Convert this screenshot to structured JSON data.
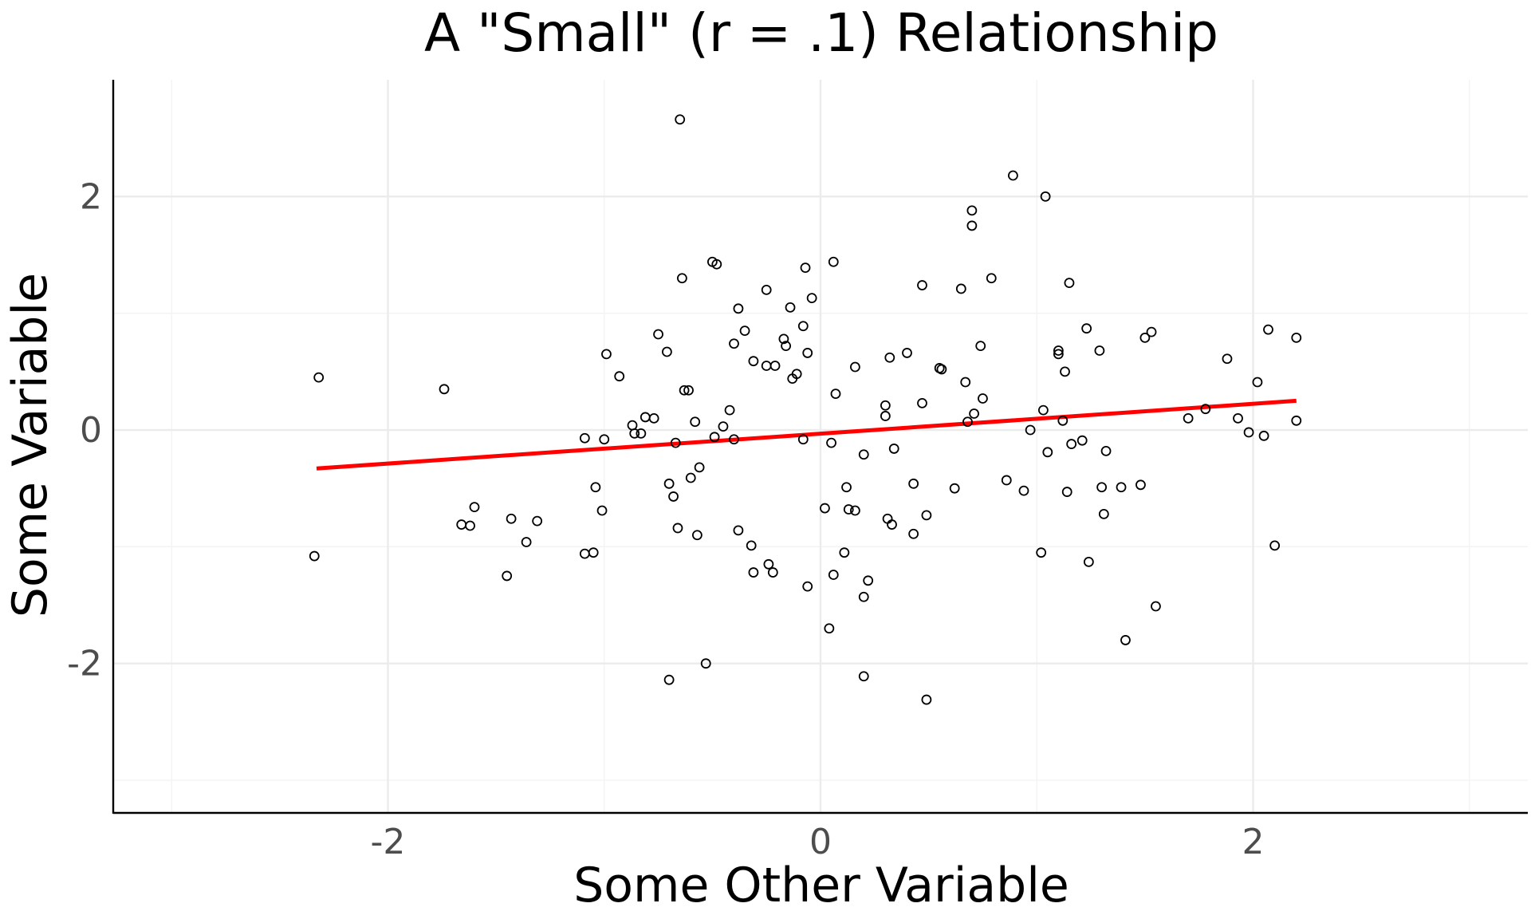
{
  "chart_data": {
    "type": "scatter",
    "title": "A \"Small\" (r = .1) Relationship",
    "xlabel": "Some Other Variable",
    "ylabel": "Some Variable",
    "xlim": [
      -3.27,
      3.27
    ],
    "ylim": [
      -3.28,
      3.0
    ],
    "x_ticks": [
      -2,
      0,
      2
    ],
    "x_tick_labels": [
      "-2",
      "0",
      "2"
    ],
    "y_ticks": [
      -2,
      0,
      2
    ],
    "y_tick_labels": [
      "-2",
      "0",
      "2"
    ],
    "x_minor_ticks": [
      -3,
      -1,
      1,
      3
    ],
    "y_minor_ticks": [
      -3,
      -1,
      1
    ],
    "grid": true,
    "legend": "none",
    "point_color": "#000000",
    "fit_color": "#ff0000",
    "fit_line": {
      "x": [
        -2.33,
        2.2
      ],
      "y": [
        -0.33,
        0.25
      ]
    },
    "points": [
      [
        -2.32,
        0.45
      ],
      [
        -2.34,
        -1.08
      ],
      [
        -1.74,
        0.35
      ],
      [
        -1.66,
        -0.81
      ],
      [
        -1.62,
        -0.82
      ],
      [
        -1.6,
        -0.66
      ],
      [
        -1.45,
        -1.25
      ],
      [
        -1.43,
        -0.76
      ],
      [
        -1.36,
        -0.96
      ],
      [
        -1.31,
        -0.78
      ],
      [
        -1.09,
        -0.07
      ],
      [
        -1.09,
        -1.06
      ],
      [
        -1.05,
        -1.05
      ],
      [
        -1.04,
        -0.49
      ],
      [
        -1.01,
        -0.69
      ],
      [
        -1.0,
        -0.08
      ],
      [
        -0.99,
        0.65
      ],
      [
        -0.93,
        0.46
      ],
      [
        -0.87,
        0.04
      ],
      [
        -0.86,
        -0.03
      ],
      [
        -0.83,
        -0.03
      ],
      [
        -0.81,
        0.11
      ],
      [
        -0.77,
        0.1
      ],
      [
        -0.75,
        0.82
      ],
      [
        -0.71,
        0.67
      ],
      [
        -0.7,
        -0.46
      ],
      [
        -0.7,
        -2.14
      ],
      [
        -0.68,
        -0.57
      ],
      [
        -0.67,
        -0.11
      ],
      [
        -0.66,
        -0.84
      ],
      [
        -0.65,
        2.66
      ],
      [
        -0.64,
        1.3
      ],
      [
        -0.63,
        0.34
      ],
      [
        -0.61,
        0.34
      ],
      [
        -0.6,
        -0.41
      ],
      [
        -0.58,
        0.07
      ],
      [
        -0.57,
        -0.9
      ],
      [
        -0.56,
        -0.32
      ],
      [
        -0.53,
        -2.0
      ],
      [
        -0.5,
        1.44
      ],
      [
        -0.49,
        -0.06
      ],
      [
        -0.48,
        1.42
      ],
      [
        -0.45,
        0.03
      ],
      [
        -0.42,
        0.17
      ],
      [
        -0.4,
        0.74
      ],
      [
        -0.4,
        -0.08
      ],
      [
        -0.38,
        1.04
      ],
      [
        -0.38,
        -0.86
      ],
      [
        -0.35,
        0.85
      ],
      [
        -0.32,
        -0.99
      ],
      [
        -0.31,
        0.59
      ],
      [
        -0.31,
        -1.22
      ],
      [
        -0.25,
        1.2
      ],
      [
        -0.25,
        0.55
      ],
      [
        -0.24,
        -1.15
      ],
      [
        -0.22,
        -1.22
      ],
      [
        -0.21,
        0.55
      ],
      [
        -0.17,
        0.78
      ],
      [
        -0.16,
        0.72
      ],
      [
        -0.14,
        1.05
      ],
      [
        -0.13,
        0.44
      ],
      [
        -0.11,
        0.48
      ],
      [
        -0.08,
        0.89
      ],
      [
        -0.08,
        -0.08
      ],
      [
        -0.07,
        1.39
      ],
      [
        -0.06,
        -1.34
      ],
      [
        -0.06,
        0.66
      ],
      [
        -0.04,
        1.13
      ],
      [
        0.02,
        -0.67
      ],
      [
        0.04,
        -1.7
      ],
      [
        0.05,
        -0.11
      ],
      [
        0.06,
        1.44
      ],
      [
        0.06,
        -1.24
      ],
      [
        0.07,
        0.31
      ],
      [
        0.11,
        -1.05
      ],
      [
        0.12,
        -0.49
      ],
      [
        0.13,
        -0.68
      ],
      [
        0.16,
        0.54
      ],
      [
        0.16,
        -0.69
      ],
      [
        0.2,
        -1.43
      ],
      [
        0.2,
        -2.11
      ],
      [
        0.2,
        -0.21
      ],
      [
        0.22,
        -1.29
      ],
      [
        0.3,
        0.21
      ],
      [
        0.3,
        0.12
      ],
      [
        0.31,
        -0.76
      ],
      [
        0.32,
        0.62
      ],
      [
        0.33,
        -0.81
      ],
      [
        0.34,
        -0.16
      ],
      [
        0.4,
        0.66
      ],
      [
        0.43,
        -0.46
      ],
      [
        0.43,
        -0.89
      ],
      [
        0.47,
        1.24
      ],
      [
        0.47,
        0.23
      ],
      [
        0.49,
        -0.73
      ],
      [
        0.49,
        -2.31
      ],
      [
        0.55,
        0.53
      ],
      [
        0.56,
        0.52
      ],
      [
        0.62,
        -0.5
      ],
      [
        0.65,
        1.21
      ],
      [
        0.67,
        0.41
      ],
      [
        0.68,
        0.07
      ],
      [
        0.7,
        1.88
      ],
      [
        0.7,
        1.75
      ],
      [
        0.71,
        0.14
      ],
      [
        0.74,
        0.72
      ],
      [
        0.75,
        0.27
      ],
      [
        0.79,
        1.3
      ],
      [
        0.86,
        -0.43
      ],
      [
        0.89,
        2.18
      ],
      [
        0.94,
        -0.52
      ],
      [
        0.97,
        0.0
      ],
      [
        1.02,
        -1.05
      ],
      [
        1.03,
        0.17
      ],
      [
        1.04,
        2.0
      ],
      [
        1.05,
        -0.19
      ],
      [
        1.1,
        0.68
      ],
      [
        1.1,
        0.65
      ],
      [
        1.12,
        0.08
      ],
      [
        1.13,
        0.5
      ],
      [
        1.14,
        -0.53
      ],
      [
        1.15,
        1.26
      ],
      [
        1.16,
        -0.12
      ],
      [
        1.21,
        -0.09
      ],
      [
        1.23,
        0.87
      ],
      [
        1.24,
        -1.13
      ],
      [
        1.29,
        0.68
      ],
      [
        1.3,
        -0.49
      ],
      [
        1.31,
        -0.72
      ],
      [
        1.32,
        -0.18
      ],
      [
        1.39,
        -0.49
      ],
      [
        1.41,
        -1.8
      ],
      [
        1.48,
        -0.47
      ],
      [
        1.5,
        0.79
      ],
      [
        1.53,
        0.84
      ],
      [
        1.55,
        -1.51
      ],
      [
        1.7,
        0.1
      ],
      [
        1.78,
        0.18
      ],
      [
        1.88,
        0.61
      ],
      [
        1.93,
        0.1
      ],
      [
        1.98,
        -0.02
      ],
      [
        2.02,
        0.41
      ],
      [
        2.05,
        -0.05
      ],
      [
        2.07,
        0.86
      ],
      [
        2.1,
        -0.99
      ],
      [
        2.2,
        0.08
      ],
      [
        2.2,
        0.79
      ]
    ]
  }
}
